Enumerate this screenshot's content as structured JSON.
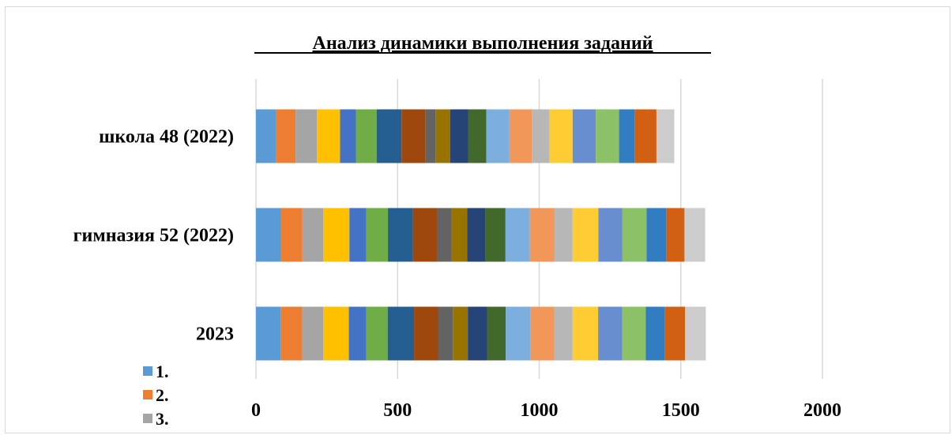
{
  "chart_data": {
    "type": "bar",
    "orientation": "horizontal",
    "stacked": true,
    "title": "Анализ динамики выполнения заданий",
    "categories": [
      "школа 48 (2022)",
      "гимназия 52 (2022)",
      "2023"
    ],
    "xlim": [
      0,
      2000
    ],
    "xticks": [
      "0",
      "500",
      "1000",
      "1500",
      "2000"
    ],
    "grid": true,
    "legend_position": "bottom-left",
    "legend_visible": [
      "1.",
      "2.",
      "3."
    ],
    "series": [
      {
        "name": "1.",
        "color": "#5b9bd5",
        "values": [
          72,
          88,
          87
        ]
      },
      {
        "name": "2.",
        "color": "#ed7d31",
        "values": [
          68,
          76,
          76
        ]
      },
      {
        "color": "#a5a5a5",
        "values": [
          75,
          74,
          75
        ]
      },
      {
        "color": "#ffc000",
        "values": [
          82,
          92,
          90
        ]
      },
      {
        "color": "#4472c4",
        "values": [
          56,
          60,
          62
        ]
      },
      {
        "color": "#70ad47",
        "values": [
          73,
          76,
          75
        ]
      },
      {
        "color": "#255e91",
        "values": [
          88,
          88,
          93
        ]
      },
      {
        "color": "#9e480e",
        "values": [
          85,
          86,
          85
        ]
      },
      {
        "color": "#636363",
        "values": [
          35,
          49,
          52
        ]
      },
      {
        "color": "#997300",
        "values": [
          52,
          57,
          53
        ]
      },
      {
        "color": "#264478",
        "values": [
          63,
          64,
          68
        ]
      },
      {
        "color": "#43682b",
        "values": [
          64,
          71,
          66
        ]
      },
      {
        "color": "#7cafdd",
        "values": [
          82,
          86,
          88
        ]
      },
      {
        "color": "#f1975a",
        "values": [
          79,
          86,
          84
        ]
      },
      {
        "color": "#b7b7b7",
        "values": [
          62,
          65,
          64
        ]
      },
      {
        "color": "#ffcd33",
        "values": [
          82,
          91,
          90
        ]
      },
      {
        "color": "#698ed0",
        "values": [
          82,
          85,
          85
        ]
      },
      {
        "color": "#8cc168",
        "values": [
          82,
          85,
          83
        ]
      },
      {
        "color": "#327dc2",
        "values": [
          55,
          69,
          68
        ]
      },
      {
        "color": "#d26012",
        "values": [
          77,
          65,
          71
        ]
      },
      {
        "color": "#cccccc",
        "values": [
          63,
          73,
          73
        ]
      }
    ]
  }
}
